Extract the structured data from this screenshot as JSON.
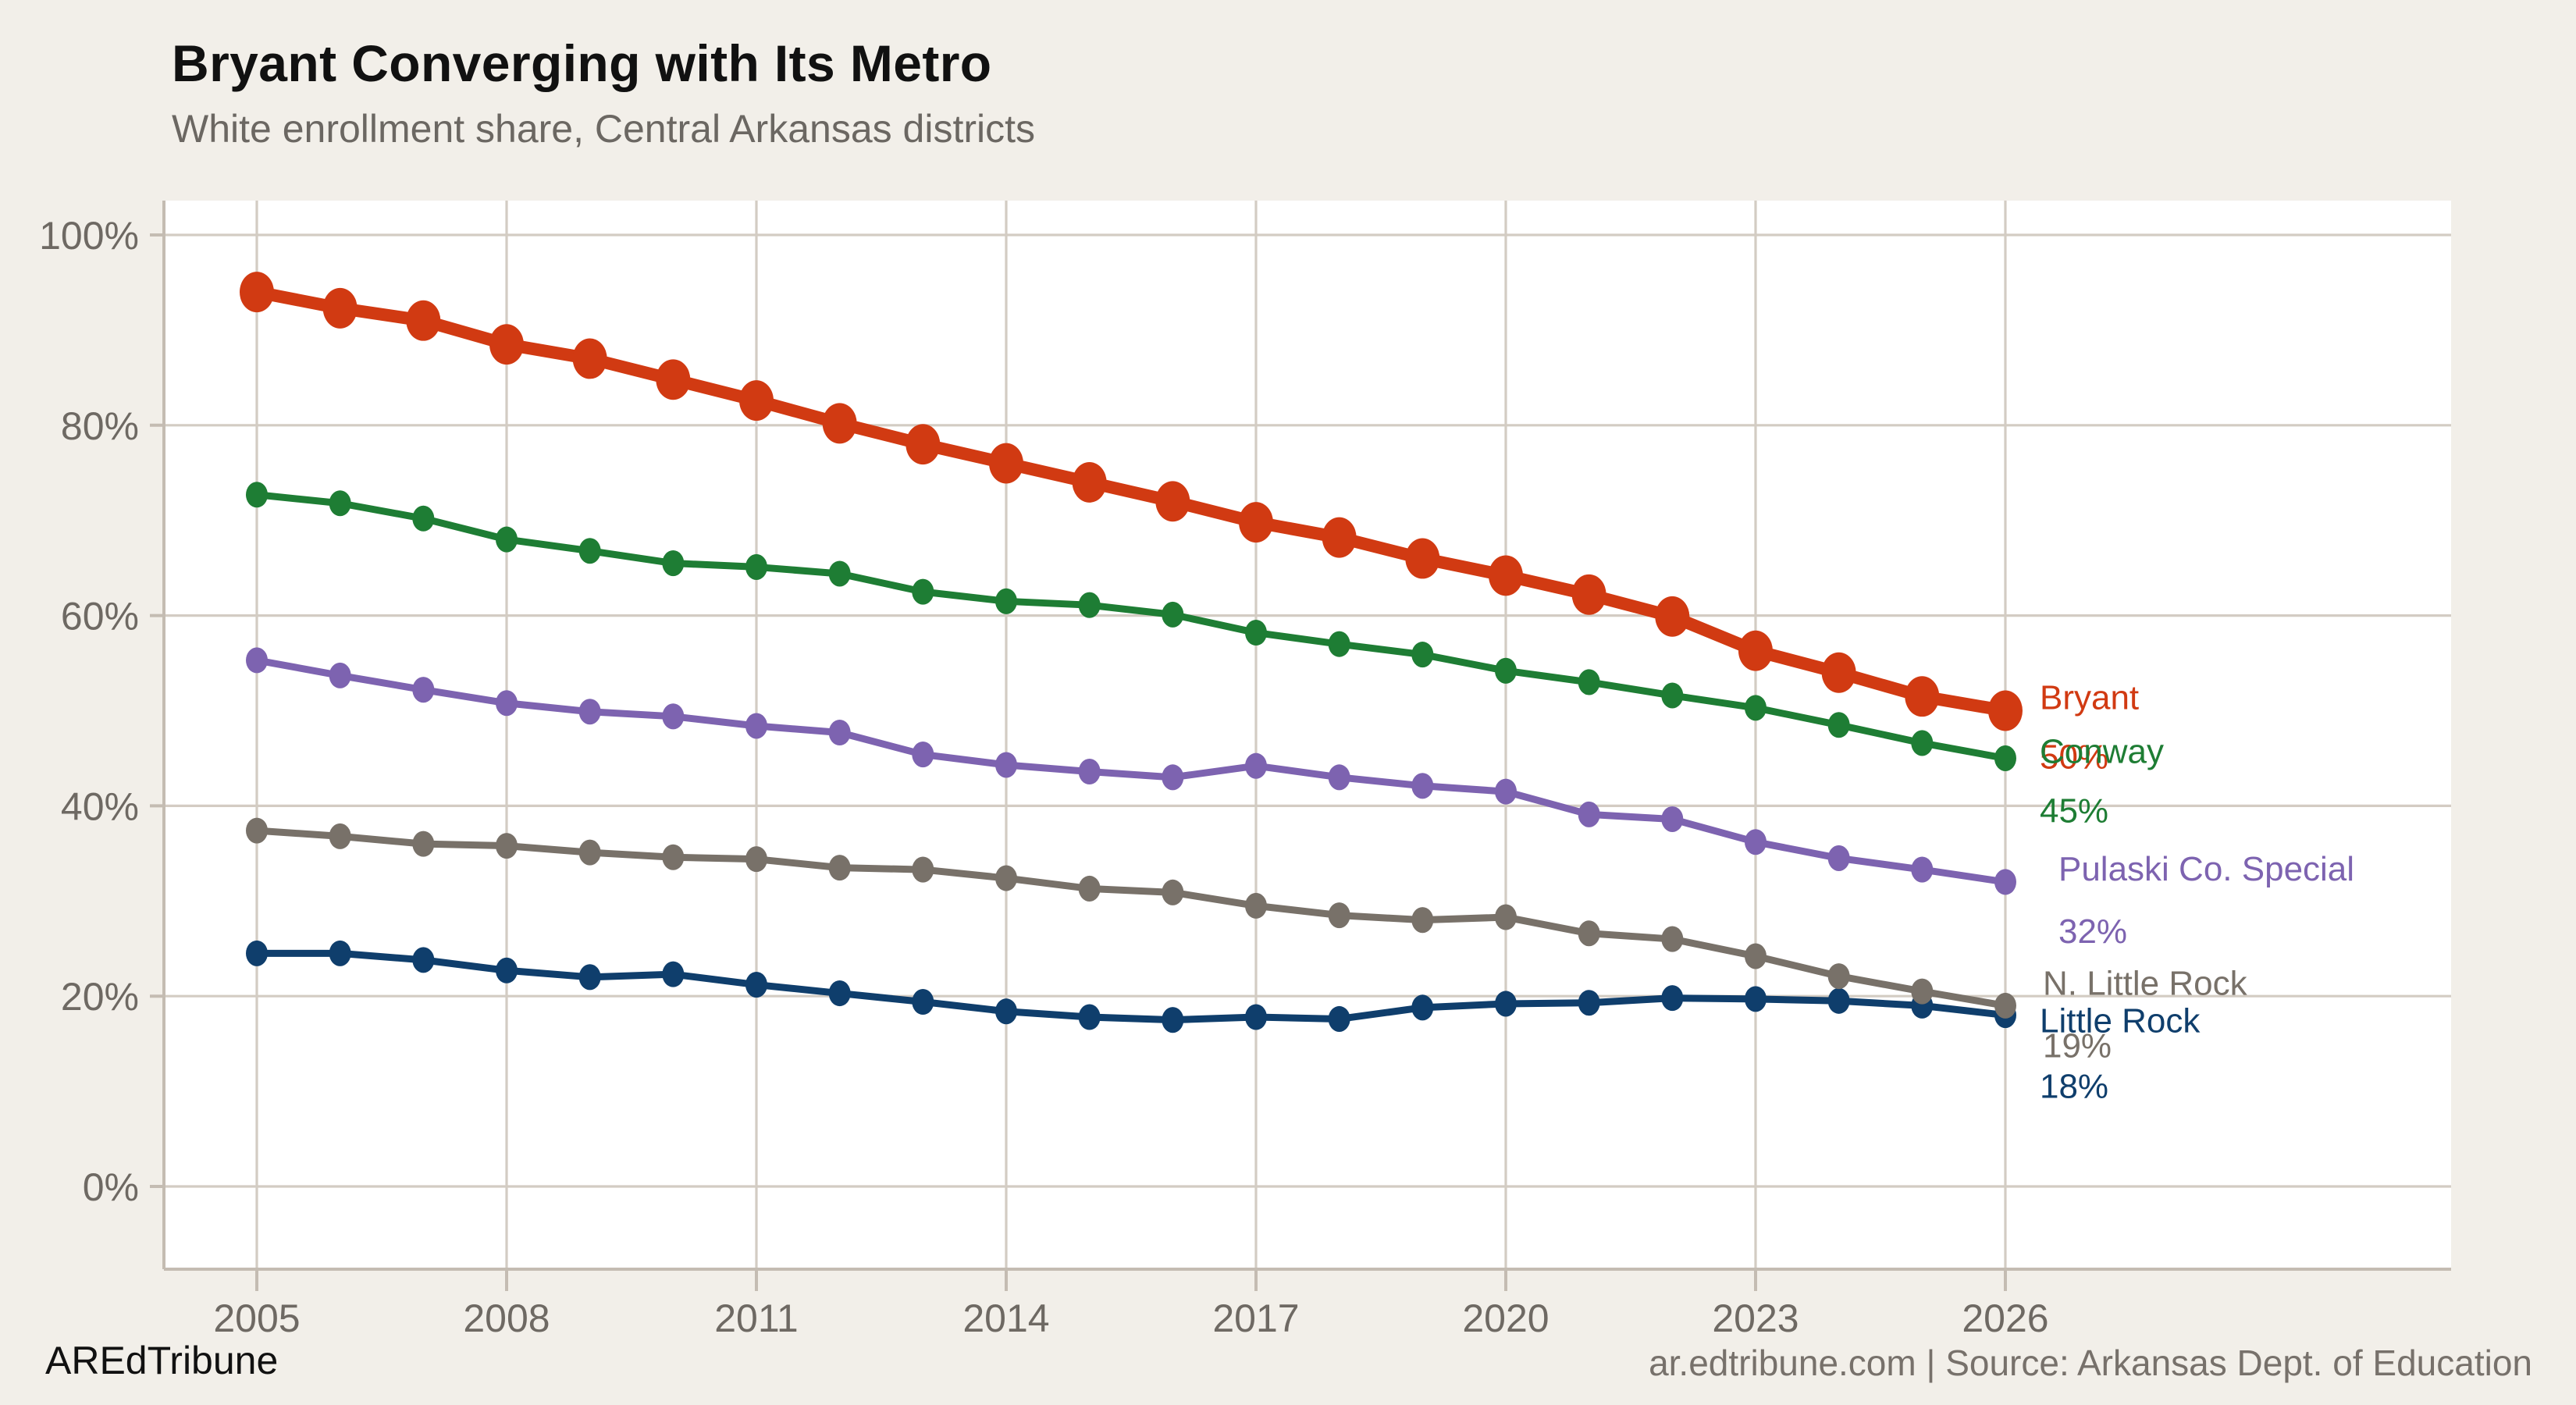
{
  "header": {
    "title": "Bryant Converging with Its Metro",
    "subtitle": "White enrollment share, Central Arkansas districts"
  },
  "footer": {
    "brand": "AREdTribune",
    "source": "ar.edtribune.com | Source: Arkansas Dept. of Education"
  },
  "colors": {
    "background": "#f2efe9",
    "panel": "#ffffff",
    "grid": "#d3ccc3",
    "axis_line": "#c4bcb2",
    "axis_text": "#6e6963",
    "title": "#111111",
    "subtitle": "#6b6762",
    "footer_source": "#77716b"
  },
  "chart_data": {
    "type": "line",
    "title": "Bryant Converging with Its Metro",
    "subtitle": "White enrollment share, Central Arkansas districts",
    "xlabel": "",
    "ylabel": "",
    "x": [
      2005,
      2006,
      2007,
      2008,
      2009,
      2010,
      2011,
      2012,
      2013,
      2014,
      2015,
      2016,
      2017,
      2018,
      2019,
      2020,
      2021,
      2022,
      2023,
      2024,
      2025,
      2026
    ],
    "xticks": [
      2005,
      2008,
      2011,
      2014,
      2017,
      2020,
      2023,
      2026
    ],
    "yticks": [
      0,
      20,
      40,
      60,
      80,
      100
    ],
    "ytick_suffix": "%",
    "ylim": [
      0,
      100
    ],
    "grid": true,
    "legend_position": "end-of-line labels (right edge)",
    "series": [
      {
        "name": "Bryant",
        "color": "#d13a12",
        "end_label": "50%",
        "emphasis": true,
        "values": [
          94.0,
          92.3,
          91.0,
          88.5,
          87.0,
          84.8,
          82.6,
          80.2,
          78.0,
          76.0,
          74.0,
          72.0,
          69.8,
          68.2,
          66.0,
          64.2,
          62.2,
          59.9,
          56.3,
          54.0,
          51.5,
          50.0
        ]
      },
      {
        "name": "Conway",
        "color": "#1e7d34",
        "end_label": "45%",
        "emphasis": false,
        "values": [
          72.7,
          71.8,
          70.2,
          68.0,
          66.8,
          65.5,
          65.1,
          64.4,
          62.5,
          61.5,
          61.1,
          60.1,
          58.2,
          57.0,
          55.9,
          54.2,
          53.0,
          51.6,
          50.3,
          48.5,
          46.6,
          45.0
        ]
      },
      {
        "name": "Pulaski Co. Special",
        "color": "#7d63b0",
        "end_label": "32%",
        "emphasis": false,
        "values": [
          55.3,
          53.7,
          52.2,
          50.8,
          49.9,
          49.4,
          48.4,
          47.7,
          45.4,
          44.3,
          43.6,
          43.0,
          44.2,
          43.0,
          42.1,
          41.5,
          39.1,
          38.6,
          36.2,
          34.5,
          33.3,
          32.0
        ]
      },
      {
        "name": "N. Little Rock",
        "color": "#787169",
        "end_label": "19%",
        "emphasis": false,
        "values": [
          37.4,
          36.8,
          36.0,
          35.8,
          35.1,
          34.6,
          34.4,
          33.5,
          33.3,
          32.4,
          31.3,
          30.9,
          29.5,
          28.5,
          28.0,
          28.3,
          26.6,
          26.0,
          24.2,
          22.1,
          20.5,
          19.0
        ]
      },
      {
        "name": "Little Rock",
        "color": "#0f3e6c",
        "end_label": "18%",
        "emphasis": false,
        "values": [
          24.5,
          24.5,
          23.8,
          22.7,
          22.0,
          22.3,
          21.2,
          20.3,
          19.4,
          18.4,
          17.8,
          17.5,
          17.8,
          17.6,
          18.8,
          19.2,
          19.3,
          19.8,
          19.7,
          19.5,
          19.0,
          18.0
        ]
      }
    ]
  }
}
